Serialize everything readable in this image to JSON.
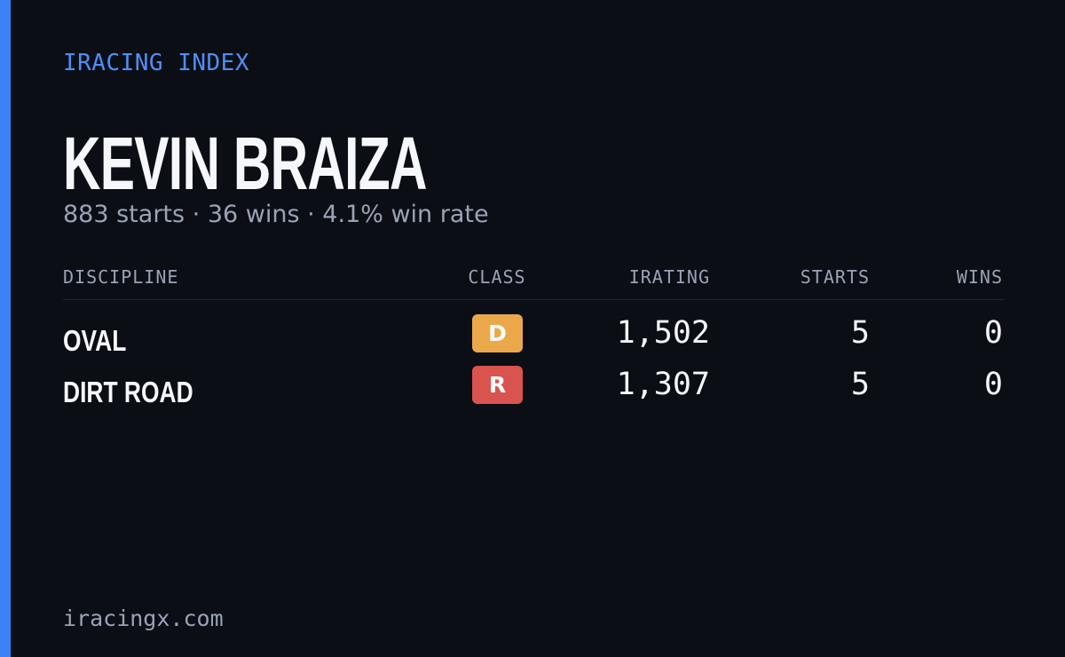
{
  "header": {
    "eyebrow": "IRACING INDEX",
    "name": "KEVIN BRAIZA",
    "summary": "883 starts · 36 wins · 4.1% win rate"
  },
  "table": {
    "columns": [
      "DISCIPLINE",
      "CLASS",
      "IRATING",
      "STARTS",
      "WINS"
    ],
    "rows": [
      {
        "discipline": "OVAL",
        "class": "D",
        "class_color": "#eaa84a",
        "irating": "1,502",
        "starts": 5,
        "wins": 0
      },
      {
        "discipline": "DIRT ROAD",
        "class": "R",
        "class_color": "#d9534f",
        "irating": "1,307",
        "starts": 5,
        "wins": 0
      }
    ]
  },
  "footer": {
    "site": "iracingx.com"
  }
}
